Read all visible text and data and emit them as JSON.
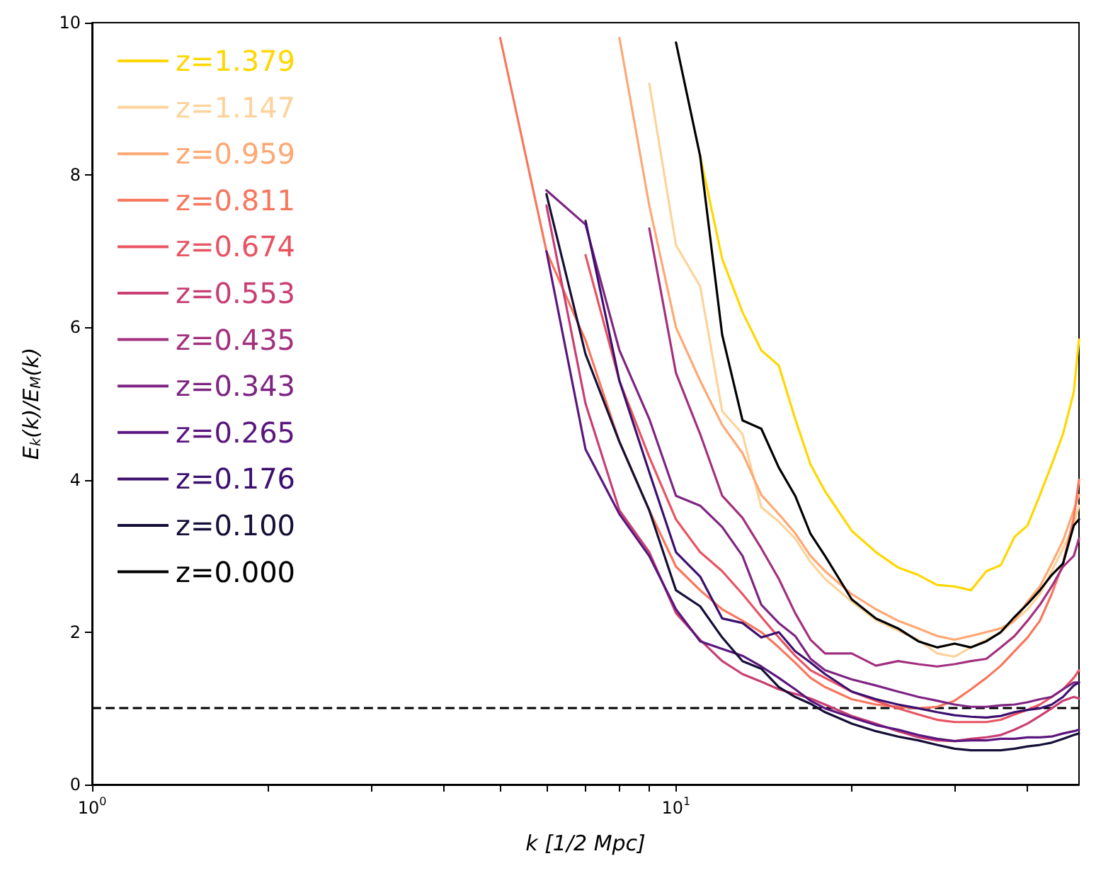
{
  "chart_data": {
    "type": "line",
    "xlabel": "k [1/2 Mpc]",
    "ylabel": "E$_{k}$(k)/E$_{M}$(k)",
    "log": "x",
    "x": [
      5,
      6,
      7,
      8,
      9,
      10,
      11,
      12,
      13,
      14,
      15,
      16,
      17,
      18,
      20,
      22,
      24,
      26,
      28,
      30,
      32,
      34,
      36,
      38,
      40,
      42,
      44,
      46,
      48,
      49
    ],
    "xlim": [
      1,
      49
    ],
    "xticks": [
      {
        "value": 1,
        "label": "10$^{0}$"
      },
      {
        "value": 2,
        "label": null
      },
      {
        "value": 3,
        "label": null
      },
      {
        "value": 4,
        "label": null
      },
      {
        "value": 5,
        "label": null
      },
      {
        "value": 6,
        "label": null
      },
      {
        "value": 7,
        "label": null
      },
      {
        "value": 8,
        "label": null
      },
      {
        "value": 9,
        "label": null
      },
      {
        "value": 10,
        "label": "10$^{1}$"
      },
      {
        "value": 20,
        "label": null
      },
      {
        "value": 30,
        "label": null
      },
      {
        "value": 40,
        "label": null
      }
    ],
    "ylim": [
      0,
      10
    ],
    "yticks": [
      0,
      2,
      4,
      6,
      8,
      10
    ],
    "grid": false,
    "legend": "top left",
    "marker": "none",
    "line_style": "solid",
    "ref_lines": [
      {
        "axis": "y",
        "value": 1,
        "color": "#000000",
        "line_style": "dashed"
      }
    ],
    "series": [
      {
        "name": "z=1.379",
        "color": "#ffd700",
        "values": [
          null,
          null,
          null,
          null,
          null,
          null,
          8.25,
          6.9,
          6.2,
          5.7,
          5.5,
          4.8,
          4.2,
          3.85,
          3.33,
          3.05,
          2.85,
          2.75,
          2.62,
          2.6,
          2.55,
          2.8,
          2.88,
          3.25,
          3.4,
          3.8,
          4.2,
          4.6,
          5.15,
          5.84
        ]
      },
      {
        "name": "z=1.147",
        "color": "#fdd39b",
        "values": [
          null,
          null,
          null,
          null,
          9.2,
          7.08,
          6.54,
          4.9,
          4.6,
          3.64,
          3.45,
          3.23,
          2.92,
          2.7,
          2.4,
          2.16,
          2.02,
          1.9,
          1.72,
          1.68,
          1.8,
          1.9,
          2.0,
          2.15,
          2.3,
          2.5,
          2.8,
          3.1,
          3.4,
          3.66
        ]
      },
      {
        "name": "z=0.959",
        "color": "#fea873",
        "values": [
          null,
          null,
          null,
          9.8,
          7.6,
          6.0,
          5.3,
          4.72,
          4.35,
          3.8,
          3.55,
          3.3,
          3.0,
          2.8,
          2.5,
          2.3,
          2.15,
          2.05,
          1.95,
          1.9,
          1.95,
          2.0,
          2.05,
          2.15,
          2.4,
          2.6,
          2.9,
          3.2,
          3.6,
          3.8
        ]
      },
      {
        "name": "z=0.811",
        "color": "#f8765c",
        "values": [
          9.8,
          7.0,
          5.83,
          4.5,
          3.6,
          2.86,
          2.55,
          2.3,
          2.15,
          2.0,
          1.8,
          1.6,
          1.4,
          1.28,
          1.12,
          1.05,
          1.02,
          1.0,
          1.02,
          1.1,
          1.25,
          1.4,
          1.56,
          1.75,
          1.93,
          2.15,
          2.5,
          2.9,
          3.5,
          4.0
        ]
      },
      {
        "name": "z=0.674",
        "color": "#e85362",
        "values": [
          null,
          null,
          6.95,
          5.3,
          4.3,
          3.48,
          3.05,
          2.8,
          2.5,
          2.2,
          1.93,
          1.69,
          1.5,
          1.4,
          1.22,
          1.1,
          1.0,
          0.92,
          0.85,
          0.82,
          0.82,
          0.82,
          0.85,
          0.92,
          0.98,
          1.05,
          1.15,
          1.25,
          1.4,
          1.5
        ]
      },
      {
        "name": "z=0.553",
        "color": "#c83e73",
        "values": [
          null,
          7.6,
          5.0,
          3.6,
          3.05,
          2.25,
          1.9,
          1.62,
          1.45,
          1.35,
          1.25,
          1.19,
          1.13,
          1.05,
          0.9,
          0.8,
          0.7,
          0.62,
          0.58,
          0.57,
          0.6,
          0.62,
          0.65,
          0.72,
          0.8,
          0.9,
          1.0,
          1.1,
          1.15,
          1.13
        ]
      },
      {
        "name": "z=0.435",
        "color": "#a3307e",
        "values": [
          null,
          null,
          null,
          null,
          7.3,
          5.4,
          4.6,
          3.79,
          3.5,
          3.1,
          2.7,
          2.25,
          1.9,
          1.72,
          1.72,
          1.56,
          1.62,
          1.58,
          1.55,
          1.58,
          1.62,
          1.65,
          1.8,
          1.95,
          2.15,
          2.36,
          2.6,
          2.86,
          3.0,
          3.23
        ]
      },
      {
        "name": "z=0.343",
        "color": "#7e2482",
        "values": [
          null,
          7.8,
          7.35,
          5.7,
          4.8,
          3.79,
          3.66,
          3.38,
          3.0,
          2.36,
          2.12,
          1.95,
          1.65,
          1.5,
          1.38,
          1.3,
          1.22,
          1.15,
          1.1,
          1.05,
          1.02,
          1.02,
          1.04,
          1.05,
          1.08,
          1.12,
          1.15,
          1.25,
          1.34,
          1.34
        ]
      },
      {
        "name": "z=0.265",
        "color": "#5a167e",
        "values": [
          null,
          7.0,
          4.4,
          3.55,
          3.0,
          2.3,
          1.88,
          1.78,
          1.69,
          1.55,
          1.4,
          1.25,
          1.1,
          1.0,
          0.88,
          0.78,
          0.72,
          0.65,
          0.6,
          0.57,
          0.58,
          0.58,
          0.6,
          0.6,
          0.62,
          0.62,
          0.63,
          0.67,
          0.7,
          0.72
        ]
      },
      {
        "name": "z=0.176",
        "color": "#3b0f6f",
        "values": [
          null,
          null,
          7.4,
          5.3,
          4.1,
          3.05,
          2.73,
          2.18,
          2.12,
          1.93,
          2.0,
          1.75,
          1.6,
          1.45,
          1.22,
          1.12,
          1.05,
          1.0,
          0.95,
          0.91,
          0.89,
          0.88,
          0.9,
          0.95,
          0.98,
          1.0,
          1.05,
          1.15,
          1.3,
          1.34
        ]
      },
      {
        "name": "z=0.100",
        "color": "#150e37",
        "values": [
          null,
          7.75,
          5.65,
          4.5,
          3.6,
          2.55,
          2.34,
          1.93,
          1.62,
          1.52,
          1.28,
          1.15,
          1.06,
          0.95,
          0.8,
          0.7,
          0.63,
          0.58,
          0.52,
          0.47,
          0.45,
          0.45,
          0.45,
          0.47,
          0.5,
          0.52,
          0.55,
          0.6,
          0.65,
          0.67
        ]
      },
      {
        "name": "z=0.000",
        "color": "#000000",
        "values": [
          null,
          null,
          null,
          null,
          null,
          9.74,
          8.25,
          5.9,
          4.78,
          4.67,
          4.16,
          3.79,
          3.29,
          3.0,
          2.43,
          2.18,
          2.05,
          1.88,
          1.8,
          1.85,
          1.8,
          1.88,
          2.0,
          2.2,
          2.37,
          2.55,
          2.75,
          2.9,
          3.4,
          3.48
        ]
      }
    ]
  }
}
